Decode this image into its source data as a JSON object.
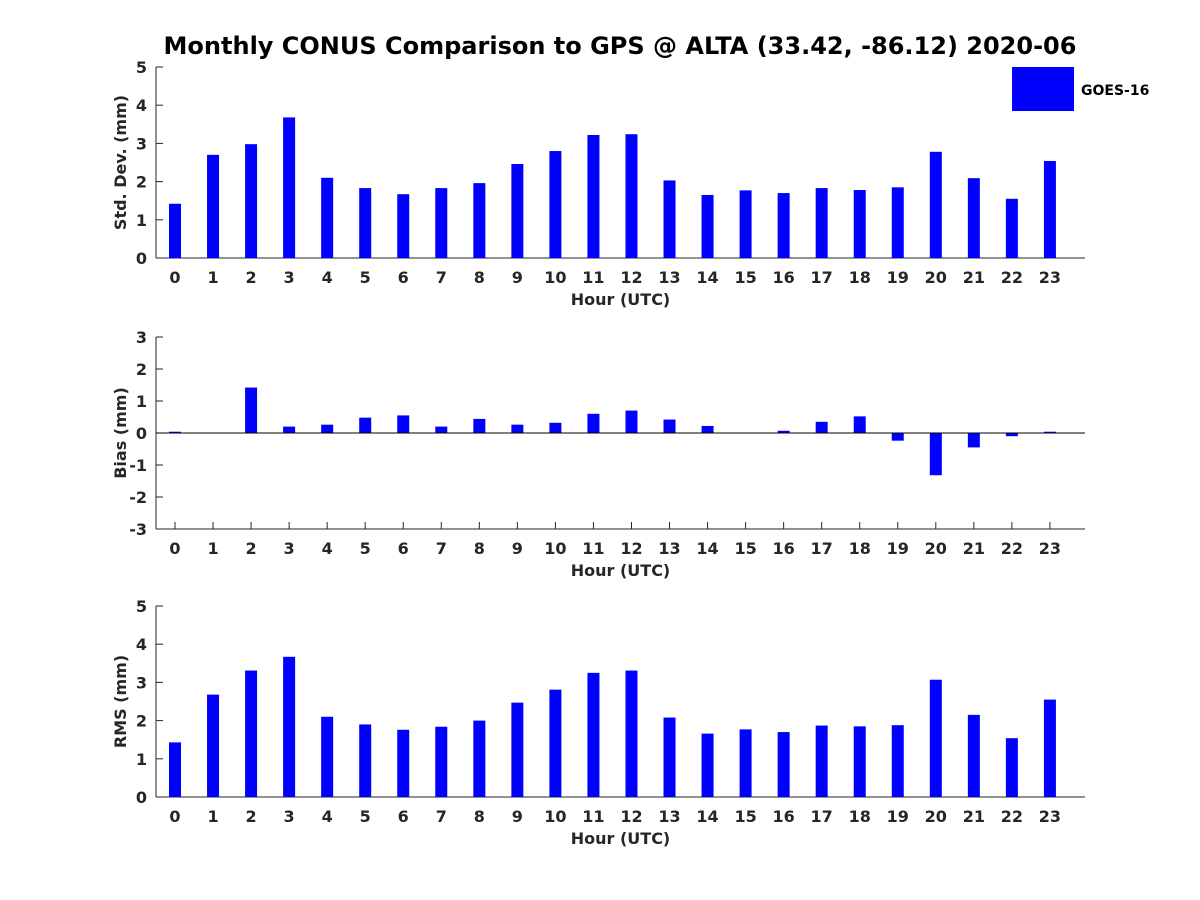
{
  "title": "Monthly CONUS Comparison to GPS @ ALTA (33.42, -86.12) 2020-06",
  "legend": {
    "label": "GOES-16",
    "color": "#0000ff",
    "placement": "top-right"
  },
  "chart_data": [
    {
      "type": "bar",
      "name": "std",
      "ylabel": "Std. Dev. (mm)",
      "xlabel": "Hour (UTC)",
      "ylim": [
        0,
        5
      ],
      "yticks": [
        0,
        1,
        2,
        3,
        4,
        5
      ],
      "categories": [
        "0",
        "1",
        "2",
        "3",
        "4",
        "5",
        "6",
        "7",
        "8",
        "9",
        "10",
        "11",
        "12",
        "13",
        "14",
        "15",
        "16",
        "17",
        "18",
        "19",
        "20",
        "21",
        "22",
        "23"
      ],
      "series": [
        {
          "name": "GOES-16",
          "color": "#0000ff",
          "values": [
            1.42,
            2.7,
            2.98,
            3.68,
            2.1,
            1.83,
            1.67,
            1.83,
            1.96,
            2.46,
            2.8,
            3.22,
            3.24,
            2.03,
            1.65,
            1.77,
            1.7,
            1.83,
            1.78,
            1.85,
            2.78,
            2.09,
            1.55,
            2.54
          ]
        }
      ]
    },
    {
      "type": "bar",
      "name": "bias",
      "ylabel": "Bias (mm)",
      "xlabel": "Hour (UTC)",
      "ylim": [
        -3,
        3
      ],
      "yticks": [
        -3,
        -2,
        -1,
        0,
        1,
        2,
        3
      ],
      "categories": [
        "0",
        "1",
        "2",
        "3",
        "4",
        "5",
        "6",
        "7",
        "8",
        "9",
        "10",
        "11",
        "12",
        "13",
        "14",
        "15",
        "16",
        "17",
        "18",
        "19",
        "20",
        "21",
        "22",
        "23"
      ],
      "series": [
        {
          "name": "GOES-16",
          "color": "#0000ff",
          "values": [
            0.04,
            0.0,
            1.42,
            0.2,
            0.26,
            0.48,
            0.55,
            0.2,
            0.44,
            0.26,
            0.32,
            0.6,
            0.7,
            0.42,
            0.22,
            0.0,
            0.07,
            0.35,
            0.52,
            -0.24,
            -1.32,
            -0.45,
            -0.1,
            0.04
          ]
        }
      ]
    },
    {
      "type": "bar",
      "name": "rms",
      "ylabel": "RMS (mm)",
      "xlabel": "Hour (UTC)",
      "ylim": [
        0,
        5
      ],
      "yticks": [
        0,
        1,
        2,
        3,
        4,
        5
      ],
      "categories": [
        "0",
        "1",
        "2",
        "3",
        "4",
        "5",
        "6",
        "7",
        "8",
        "9",
        "10",
        "11",
        "12",
        "13",
        "14",
        "15",
        "16",
        "17",
        "18",
        "19",
        "20",
        "21",
        "22",
        "23"
      ],
      "series": [
        {
          "name": "GOES-16",
          "color": "#0000ff",
          "values": [
            1.43,
            2.68,
            3.31,
            3.67,
            2.1,
            1.9,
            1.76,
            1.84,
            2.0,
            2.47,
            2.81,
            3.25,
            3.31,
            2.08,
            1.66,
            1.77,
            1.7,
            1.87,
            1.85,
            1.88,
            3.07,
            2.15,
            1.54,
            2.55
          ]
        }
      ]
    }
  ]
}
